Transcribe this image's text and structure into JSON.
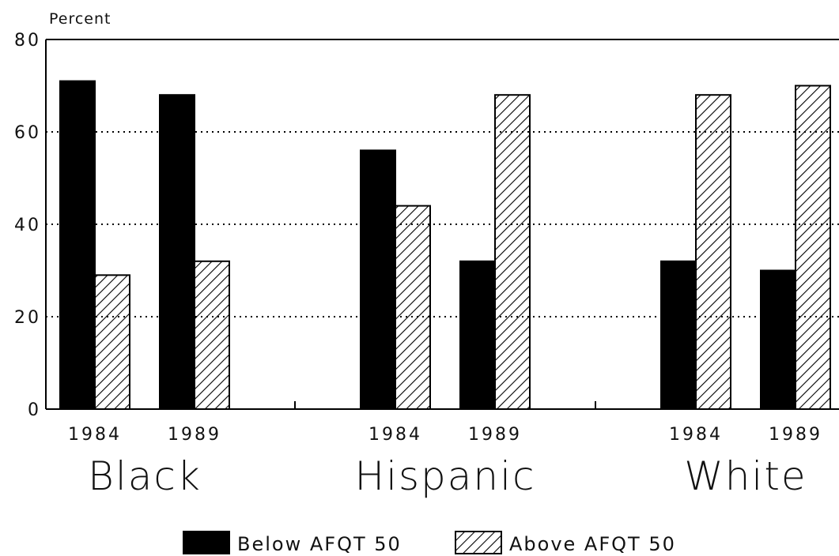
{
  "chart_data": {
    "type": "bar",
    "ylabel": "Percent",
    "ylim": [
      0,
      80
    ],
    "yticks": [
      0,
      20,
      40,
      60,
      80
    ],
    "grid": "dotted horizontal at 20, 40, 60",
    "legend_position": "bottom",
    "groups": [
      {
        "name": "Black",
        "years": [
          "1984",
          "1989"
        ],
        "values": {
          "below": [
            71,
            68
          ],
          "above": [
            29,
            32
          ]
        }
      },
      {
        "name": "Hispanic",
        "years": [
          "1984",
          "1989"
        ],
        "values": {
          "below": [
            56,
            32
          ],
          "above": [
            44,
            68
          ]
        }
      },
      {
        "name": "White",
        "years": [
          "1984",
          "1989"
        ],
        "values": {
          "below": [
            32,
            30
          ],
          "above": [
            68,
            70
          ]
        }
      }
    ],
    "series": [
      {
        "key": "below",
        "name": "Below AFQT 50",
        "fill": "solid",
        "color": "#000000"
      },
      {
        "key": "above",
        "name": "Above AFQT 50",
        "fill": "hatched",
        "color": "#000000"
      }
    ]
  }
}
